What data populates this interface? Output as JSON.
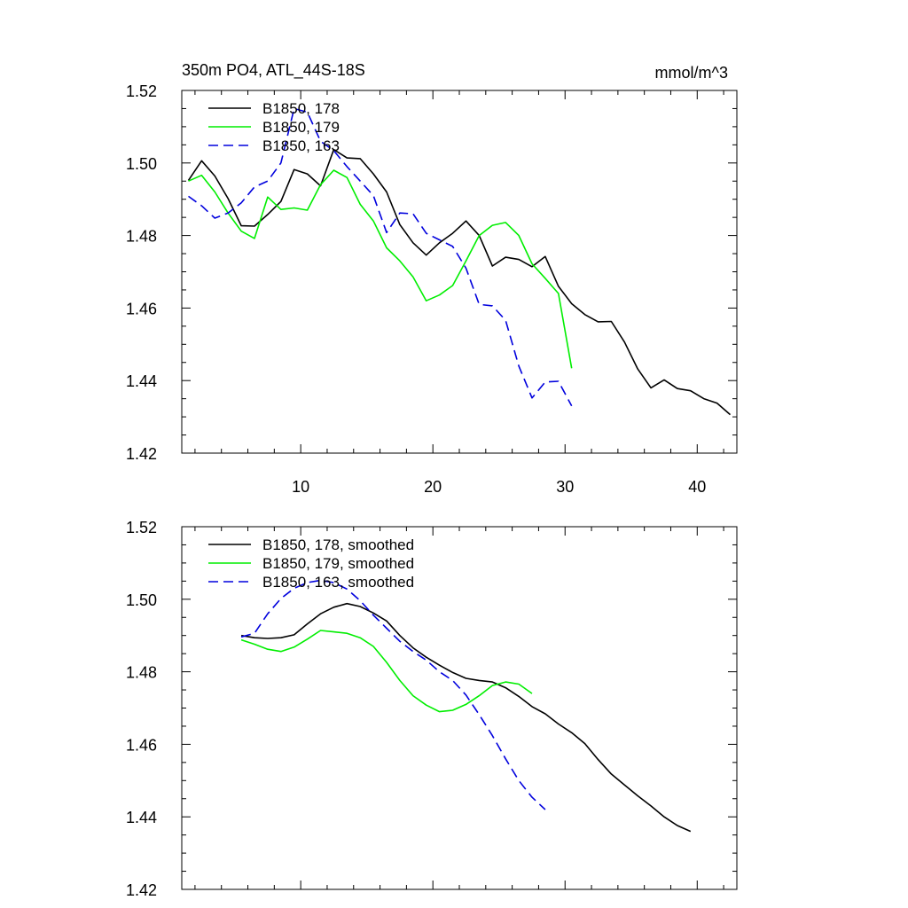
{
  "chart_data": [
    {
      "type": "line",
      "title": "350m PO4, ATL_44S-18S",
      "units": "mmol/m^3",
      "xlim": [
        1,
        43
      ],
      "ylim": [
        1.42,
        1.52
      ],
      "xticks": [
        10,
        20,
        30,
        40
      ],
      "yticks": [
        1.42,
        1.44,
        1.46,
        1.48,
        1.5,
        1.52
      ],
      "ytick_labels": [
        "1.42",
        "1.44",
        "1.46",
        "1.48",
        "1.50",
        "1.52"
      ],
      "legend_position": "top-left",
      "series": [
        {
          "name": "B1850, 178",
          "color": "#000000",
          "dash": "solid",
          "x": [
            1.5,
            2.5,
            3.5,
            4.5,
            5.5,
            6.5,
            7.5,
            8.5,
            9.5,
            10.5,
            11.5,
            12.5,
            13.5,
            14.5,
            15.5,
            16.5,
            17.5,
            18.5,
            19.5,
            20.5,
            21.5,
            22.5,
            23.5,
            24.5,
            25.5,
            26.5,
            27.5,
            28.5,
            29.5,
            30.5,
            31.5,
            32.5,
            33.5,
            34.5,
            35.5,
            36.5,
            37.5,
            38.5,
            39.5,
            40.5,
            41.5,
            42.5
          ],
          "y": [
            1.4952,
            1.5006,
            1.4964,
            1.4902,
            1.4827,
            1.4826,
            1.4858,
            1.4894,
            1.4982,
            1.497,
            1.4937,
            1.5037,
            1.5014,
            1.5012,
            1.497,
            1.492,
            1.483,
            1.478,
            1.4746,
            1.478,
            1.4806,
            1.484,
            1.48,
            1.4716,
            1.474,
            1.4734,
            1.4714,
            1.4742,
            1.466,
            1.4612,
            1.4582,
            1.4562,
            1.4563,
            1.4506,
            1.4432,
            1.438,
            1.4402,
            1.4378,
            1.4372,
            1.435,
            1.4338,
            1.4306
          ]
        },
        {
          "name": "B1850, 179",
          "color": "#00ee00",
          "dash": "solid",
          "x": [
            1.5,
            2.5,
            3.5,
            4.5,
            5.5,
            6.5,
            7.5,
            8.5,
            9.5,
            10.5,
            11.5,
            12.5,
            13.5,
            14.5,
            15.5,
            16.5,
            17.5,
            18.5,
            19.5,
            20.5,
            21.5,
            22.5,
            23.5,
            24.5,
            25.5,
            26.5,
            27.5,
            28.5,
            29.5,
            30.5
          ],
          "y": [
            1.495,
            1.4966,
            1.492,
            1.4862,
            1.4812,
            1.4792,
            1.4906,
            1.4872,
            1.4876,
            1.487,
            1.494,
            1.498,
            1.496,
            1.4886,
            1.484,
            1.4766,
            1.473,
            1.4686,
            1.462,
            1.4636,
            1.4662,
            1.473,
            1.48,
            1.4828,
            1.4836,
            1.48,
            1.4722,
            1.4682,
            1.464,
            1.4434
          ]
        },
        {
          "name": "B1850, 163",
          "color": "#0000dd",
          "dash": "dashed",
          "x": [
            1.5,
            2.5,
            3.5,
            4.5,
            5.5,
            6.5,
            7.5,
            8.5,
            9.5,
            10.5,
            11.5,
            12.5,
            13.5,
            14.5,
            15.5,
            16.5,
            17.5,
            18.5,
            19.5,
            20.5,
            21.5,
            22.5,
            23.5,
            24.5,
            25.5,
            26.5,
            27.5,
            28.5,
            29.5,
            30.5
          ],
          "y": [
            1.4908,
            1.4882,
            1.4848,
            1.4862,
            1.489,
            1.4934,
            1.495,
            1.5,
            1.515,
            1.514,
            1.506,
            1.5034,
            1.499,
            1.495,
            1.491,
            1.4808,
            1.4862,
            1.486,
            1.4806,
            1.4788,
            1.477,
            1.471,
            1.461,
            1.4606,
            1.4566,
            1.444,
            1.4352,
            1.4396,
            1.4398,
            1.433
          ]
        }
      ]
    },
    {
      "type": "line",
      "xlim": [
        1,
        43
      ],
      "ylim": [
        1.42,
        1.52
      ],
      "xticks": [
        10,
        20,
        30,
        40
      ],
      "yticks": [
        1.42,
        1.44,
        1.46,
        1.48,
        1.5,
        1.52
      ],
      "ytick_labels": [
        "1.42",
        "1.44",
        "1.46",
        "1.48",
        "1.50",
        "1.52"
      ],
      "legend_position": "top-left",
      "series": [
        {
          "name": "B1850, 178, smoothed",
          "color": "#000000",
          "dash": "solid",
          "x": [
            5.5,
            6.5,
            7.5,
            8.5,
            9.5,
            10.5,
            11.5,
            12.5,
            13.5,
            14.5,
            15.5,
            16.5,
            17.5,
            18.5,
            19.5,
            20.5,
            21.5,
            22.5,
            23.5,
            24.5,
            25.5,
            26.5,
            27.5,
            28.5,
            29.5,
            30.5,
            31.5,
            32.5,
            33.5,
            34.5,
            35.5,
            36.5,
            37.5,
            38.5,
            39.5
          ],
          "y": [
            1.49,
            1.4894,
            1.4892,
            1.4894,
            1.4902,
            1.4932,
            1.496,
            1.4978,
            1.4988,
            1.498,
            1.4962,
            1.494,
            1.49,
            1.4866,
            1.484,
            1.4818,
            1.4798,
            1.4782,
            1.4776,
            1.4772,
            1.4756,
            1.4732,
            1.4704,
            1.4684,
            1.4656,
            1.4632,
            1.4602,
            1.4558,
            1.4518,
            1.4488,
            1.4458,
            1.443,
            1.44,
            1.4376,
            1.436
          ]
        },
        {
          "name": "B1850, 179, smoothed",
          "color": "#00ee00",
          "dash": "solid",
          "x": [
            5.5,
            6.5,
            7.5,
            8.5,
            9.5,
            10.5,
            11.5,
            12.5,
            13.5,
            14.5,
            15.5,
            16.5,
            17.5,
            18.5,
            19.5,
            20.5,
            21.5,
            22.5,
            23.5,
            24.5,
            25.5,
            26.5,
            27.5
          ],
          "y": [
            1.4888,
            1.4876,
            1.4862,
            1.4856,
            1.4868,
            1.489,
            1.4914,
            1.491,
            1.4906,
            1.4894,
            1.487,
            1.4826,
            1.4776,
            1.4734,
            1.4708,
            1.469,
            1.4694,
            1.471,
            1.4734,
            1.4762,
            1.4772,
            1.4766,
            1.474
          ]
        },
        {
          "name": "B1850, 163, smoothed",
          "color": "#0000dd",
          "dash": "dashed",
          "x": [
            5.5,
            6.5,
            7.5,
            8.5,
            9.5,
            10.5,
            11.5,
            12.5,
            13.5,
            14.5,
            15.5,
            16.5,
            17.5,
            18.5,
            19.5,
            20.5,
            21.5,
            22.5,
            23.5,
            24.5,
            25.5,
            26.5,
            27.5,
            28.5
          ],
          "y": [
            1.4896,
            1.4906,
            1.496,
            1.5002,
            1.503,
            1.5046,
            1.5052,
            1.5046,
            1.5028,
            1.4996,
            1.4956,
            1.492,
            1.4884,
            1.4856,
            1.4832,
            1.48,
            1.4776,
            1.4736,
            1.4682,
            1.4624,
            1.456,
            1.45,
            1.4454,
            1.442
          ]
        }
      ]
    }
  ]
}
